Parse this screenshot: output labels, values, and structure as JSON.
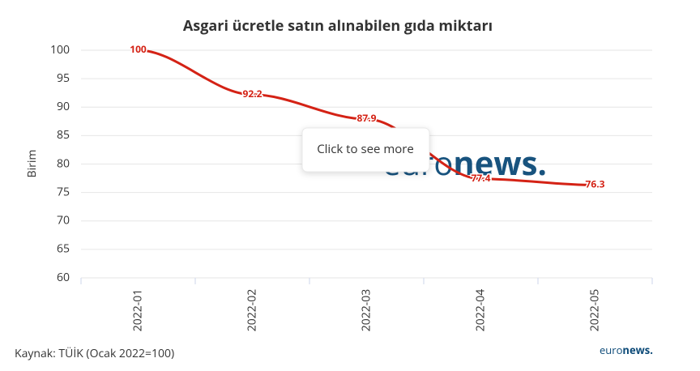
{
  "chart_data": {
    "type": "line",
    "title": "Asgari ücretle satın alınabilen gıda miktarı",
    "y_label": "Birim",
    "categories": [
      "2022-01",
      "2022-02",
      "2022-03",
      "2022-04",
      "2022-05"
    ],
    "values": [
      100,
      92.2,
      87.9,
      77.4,
      76.3
    ],
    "color": "#d42215",
    "ylim": [
      60,
      100
    ],
    "yticks": [
      60,
      65,
      70,
      75,
      80,
      85,
      90,
      95,
      100
    ],
    "grid": true,
    "data_labels": true,
    "source": "Kaynak: TÜİK (Ocak 2022=100)",
    "tooltip": "Click to see more",
    "brand": [
      "euro",
      "news."
    ]
  }
}
